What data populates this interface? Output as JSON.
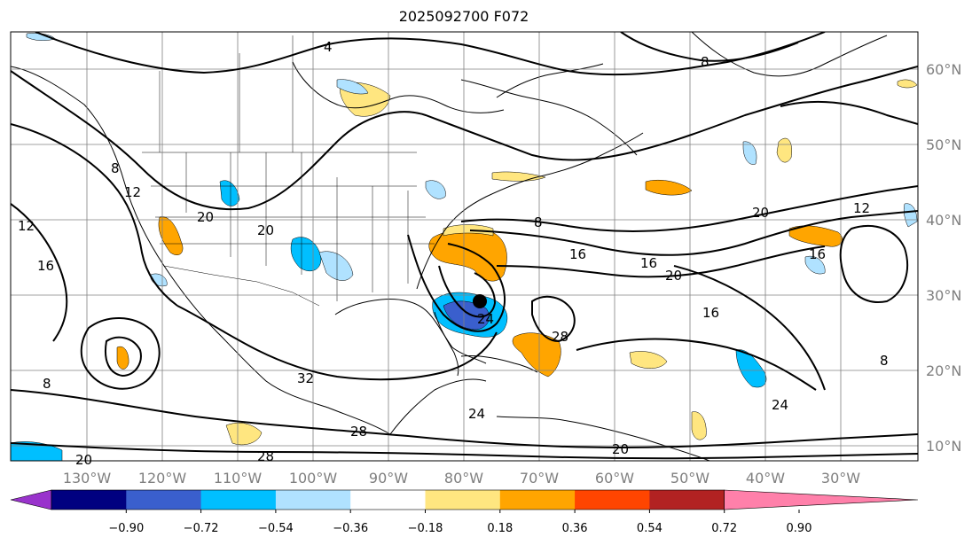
{
  "title": "2025092700 F072",
  "longitude_labels": [
    "130°W",
    "120°W",
    "110°W",
    "100°W",
    "90°W",
    "80°W",
    "70°W",
    "60°W",
    "50°W",
    "40°W",
    "30°W"
  ],
  "latitude_labels": [
    "60°N",
    "50°N",
    "40°N",
    "30°N",
    "20°N",
    "10°N"
  ],
  "colorbar": {
    "ticks": [
      "−0.90",
      "−0.72",
      "−0.54",
      "−0.36",
      "−0.18",
      "0.18",
      "0.36",
      "0.54",
      "0.72",
      "0.90"
    ],
    "colors": [
      "#9933cc",
      "#000080",
      "#3a5fcd",
      "#00bfff",
      "#b0e2ff",
      "#ffffff",
      "#ffe680",
      "#ffa500",
      "#ff4500",
      "#b22222",
      "#ff80aa"
    ]
  },
  "contour_labels": [
    "4",
    "8",
    "8",
    "8",
    "12",
    "12",
    "12",
    "16",
    "16",
    "16",
    "16",
    "16",
    "20",
    "20",
    "20",
    "20",
    "20",
    "24",
    "24",
    "24",
    "28",
    "28",
    "28",
    "32",
    "8",
    "8",
    "20"
  ],
  "storm_marker": "storm-center"
}
